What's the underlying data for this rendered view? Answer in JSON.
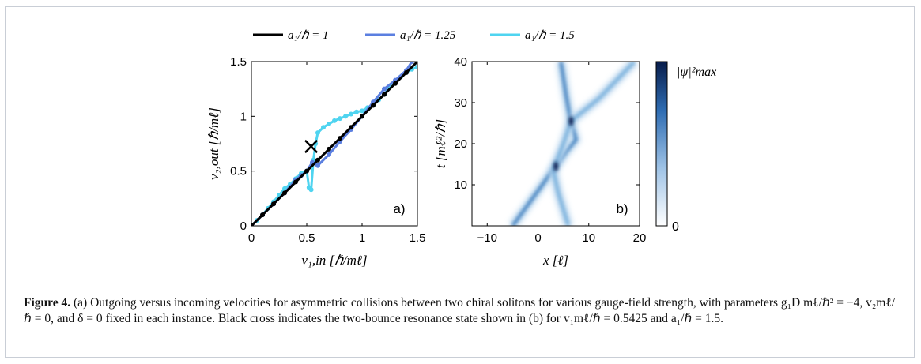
{
  "legend": [
    {
      "label": "a₁/ℏ = 1",
      "color": "#000000"
    },
    {
      "label": "a₁/ℏ = 1.25",
      "color": "#5b7fe0"
    },
    {
      "label": "a₁/ℏ = 1.5",
      "color": "#4fd4f0"
    }
  ],
  "panel_a": {
    "tag": "a)",
    "xlabel": "v₁,in [ℏ/mℓ]",
    "ylabel": "v₂,out [ℏ/mℓ]",
    "xticks": [
      "0",
      "0.5",
      "1",
      "1.5"
    ],
    "yticks": [
      "0",
      "0.5",
      "1",
      "1.5"
    ],
    "cross_marker": "×"
  },
  "panel_b": {
    "tag": "b)",
    "xlabel": "x [ℓ]",
    "ylabel": "t [mℓ²/ℏ]",
    "xticks": [
      "−10",
      "0",
      "10",
      "20"
    ],
    "yticks": [
      "10",
      "20",
      "30",
      "40"
    ],
    "colorbar_label": "|ψ|²max",
    "colorbar_min": "0"
  },
  "caption": {
    "label": "Figure 4.",
    "text": " (a) Outgoing versus incoming velocities for asymmetric collisions between two chiral solitons for various gauge-field strength, with parameters g₁D mℓ/ℏ² = −4, v₂mℓ/ℏ = 0, and δ = 0 fixed in each instance. Black cross indicates the two-bounce resonance state shown in (b) for v₁mℓ/ℏ = 0.5425 and a₁/ℏ = 1.5."
  },
  "chart_data": [
    {
      "type": "line",
      "panel": "a",
      "xlabel": "v1,in [hbar/m l]",
      "ylabel": "v2,out [hbar/m l]",
      "xlim": [
        0,
        1.5
      ],
      "ylim": [
        0,
        1.5
      ],
      "series": [
        {
          "name": "a1/hbar = 1",
          "color": "#000000",
          "x": [
            0,
            0.1,
            0.2,
            0.3,
            0.4,
            0.5,
            0.6,
            0.7,
            0.8,
            0.9,
            1.0,
            1.1,
            1.2,
            1.3,
            1.4,
            1.5
          ],
          "y": [
            0,
            0.1,
            0.2,
            0.3,
            0.4,
            0.5,
            0.6,
            0.7,
            0.8,
            0.9,
            1.0,
            1.1,
            1.2,
            1.3,
            1.4,
            1.5
          ]
        },
        {
          "name": "a1/hbar = 1.25",
          "color": "#5b7fe0",
          "x": [
            0,
            0.1,
            0.2,
            0.3,
            0.4,
            0.45,
            0.5,
            0.55,
            0.6,
            0.7,
            0.8,
            0.9,
            1.0,
            1.1,
            1.2,
            1.3,
            1.4,
            1.45
          ],
          "y": [
            0,
            0.1,
            0.2,
            0.3,
            0.42,
            0.46,
            0.5,
            0.58,
            0.55,
            0.65,
            0.77,
            0.88,
            1.0,
            1.13,
            1.25,
            1.33,
            1.42,
            1.5
          ]
        },
        {
          "name": "a1/hbar = 1.5",
          "color": "#4fd4f0",
          "x": [
            0,
            0.05,
            0.1,
            0.15,
            0.2,
            0.25,
            0.3,
            0.35,
            0.4,
            0.45,
            0.5,
            0.52,
            0.54,
            0.56,
            0.58,
            0.6,
            0.65,
            0.7,
            0.75,
            0.8,
            0.85,
            0.9,
            0.95,
            1.0,
            1.05,
            1.1,
            1.15,
            1.2,
            1.25,
            1.3,
            1.35,
            1.4,
            1.45,
            1.5
          ],
          "y": [
            0,
            0.05,
            0.1,
            0.16,
            0.22,
            0.28,
            0.34,
            0.38,
            0.43,
            0.48,
            0.5,
            0.35,
            0.33,
            0.6,
            0.75,
            0.85,
            0.9,
            0.93,
            0.96,
            0.98,
            1.0,
            1.02,
            1.04,
            1.05,
            1.08,
            1.1,
            1.15,
            1.2,
            1.27,
            1.32,
            1.36,
            1.4,
            1.43,
            1.45
          ]
        }
      ],
      "annotations": [
        {
          "marker": "x",
          "x": 0.54,
          "y": 0.73,
          "color": "#000000"
        }
      ]
    },
    {
      "type": "heatmap",
      "panel": "b",
      "xlabel": "x [l]",
      "ylabel": "t [m l^2/hbar]",
      "xlim": [
        -13,
        20
      ],
      "ylim": [
        0,
        40
      ],
      "colorbar": {
        "label": "|psi|^2_max",
        "min": 0,
        "colormap": "white-to-navy"
      },
      "trajectories": [
        {
          "name": "soliton 1",
          "points": [
            [
              -5,
              0
            ],
            [
              3.5,
              14.5
            ],
            [
              5.5,
              18
            ],
            [
              7.5,
              21
            ],
            [
              6.5,
              25
            ],
            [
              5.5,
              32
            ],
            [
              4.5,
              40
            ]
          ]
        },
        {
          "name": "soliton 2",
          "points": [
            [
              6,
              0
            ],
            [
              4,
              8
            ],
            [
              3,
              13.5
            ],
            [
              5,
              20
            ],
            [
              6.5,
              25.5
            ],
            [
              12,
              31
            ],
            [
              19,
              40
            ]
          ]
        }
      ],
      "peaks": [
        {
          "x": 3.5,
          "t": 14.5
        },
        {
          "x": 6.5,
          "t": 25.5
        }
      ]
    }
  ]
}
